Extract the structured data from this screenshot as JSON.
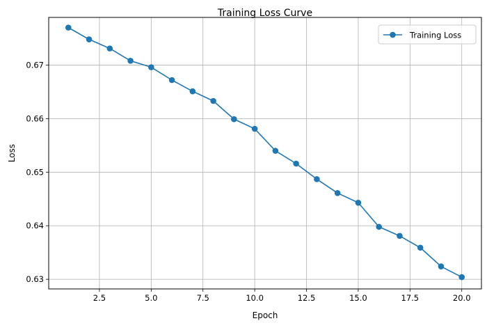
{
  "chart_data": {
    "type": "line",
    "title": "Training Loss Curve",
    "xlabel": "Epoch",
    "ylabel": "Loss",
    "xlim": [
      0.05,
      20.95
    ],
    "ylim": [
      0.6282,
      0.6789
    ],
    "grid": true,
    "legend_position": "top-right",
    "xticks": [
      2.5,
      5.0,
      7.5,
      10.0,
      12.5,
      15.0,
      17.5,
      20.0
    ],
    "xtick_labels": [
      "2.5",
      "5.0",
      "7.5",
      "10.0",
      "12.5",
      "15.0",
      "17.5",
      "20.0"
    ],
    "yticks": [
      0.63,
      0.64,
      0.65,
      0.66,
      0.67
    ],
    "ytick_labels": [
      "0.63",
      "0.64",
      "0.65",
      "0.66",
      "0.67"
    ],
    "series": [
      {
        "name": "Training Loss",
        "color": "#1f77b4",
        "marker": "circle",
        "x": [
          1,
          2,
          3,
          4,
          5,
          6,
          7,
          8,
          9,
          10,
          11,
          12,
          13,
          14,
          15,
          16,
          17,
          18,
          19,
          20
        ],
        "values": [
          0.677,
          0.6748,
          0.6731,
          0.6708,
          0.6696,
          0.6672,
          0.6651,
          0.6633,
          0.6599,
          0.6581,
          0.654,
          0.6516,
          0.6487,
          0.6461,
          0.6443,
          0.6398,
          0.6381,
          0.6359,
          0.6324,
          0.6304
        ]
      }
    ]
  }
}
